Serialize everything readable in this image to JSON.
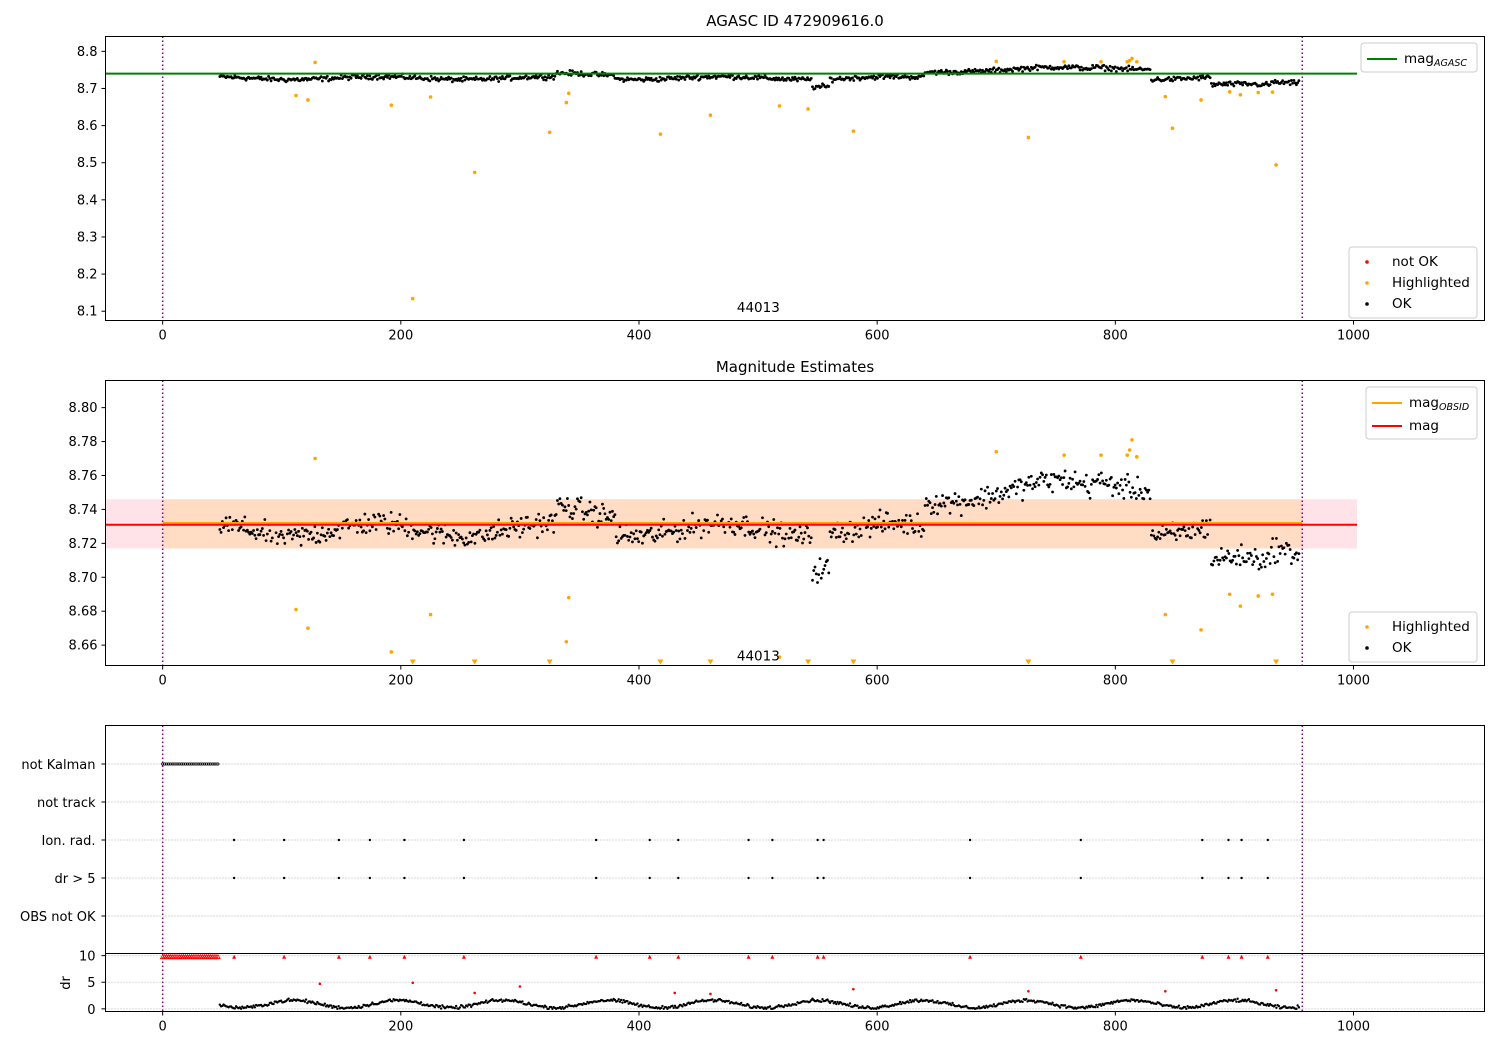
{
  "chart_data": [
    {
      "type": "scatter",
      "title": "AGASC ID 472909616.0",
      "xlabel": "",
      "ylabel": "",
      "xlim": [
        -48,
        1110
      ],
      "ylim": [
        8.075,
        8.84
      ],
      "xticks": [
        0,
        200,
        400,
        600,
        800,
        1000
      ],
      "yticks": [
        8.1,
        8.2,
        8.3,
        8.4,
        8.5,
        8.6,
        8.7,
        8.8
      ],
      "vlines": [
        0,
        957
      ],
      "annotation": {
        "text": "44013",
        "x": 478,
        "y": 8.1
      },
      "hline": {
        "name": "mag_{AGASC}",
        "y": 8.74,
        "x_range": [
          -48,
          1003
        ],
        "color": "#008000"
      },
      "legend_lines": [
        {
          "name": "mag",
          "sub": "AGASC",
          "color": "#008000"
        }
      ],
      "legend_points": [
        {
          "name": "not OK",
          "color": "#ff0000"
        },
        {
          "name": "Highlighted",
          "color": "#ffa500"
        },
        {
          "name": "OK",
          "color": "#000000"
        }
      ],
      "series": [
        {
          "name": "not OK",
          "color": "#ff0000",
          "values": []
        },
        {
          "name": "Highlighted",
          "color": "#ffa500",
          "points": [
            [
              112,
              8.681
            ],
            [
              122,
              8.669
            ],
            [
              128,
              8.77
            ],
            [
              192,
              8.655
            ],
            [
              210,
              8.134
            ],
            [
              225,
              8.677
            ],
            [
              262,
              8.474
            ],
            [
              325,
              8.582
            ],
            [
              339,
              8.662
            ],
            [
              341,
              8.687
            ],
            [
              418,
              8.577
            ],
            [
              460,
              8.628
            ],
            [
              518,
              8.653
            ],
            [
              542,
              8.645
            ],
            [
              580,
              8.585
            ],
            [
              700,
              8.773
            ],
            [
              727,
              8.568
            ],
            [
              757,
              8.772
            ],
            [
              788,
              8.772
            ],
            [
              810,
              8.772
            ],
            [
              812,
              8.775
            ],
            [
              814,
              8.781
            ],
            [
              818,
              8.772
            ],
            [
              842,
              8.678
            ],
            [
              848,
              8.593
            ],
            [
              872,
              8.669
            ],
            [
              896,
              8.691
            ],
            [
              905,
              8.683
            ],
            [
              920,
              8.689
            ],
            [
              932,
              8.69
            ],
            [
              935,
              8.494
            ]
          ]
        },
        {
          "name": "OK",
          "color": "#000000",
          "generated": {
            "x_range": [
              48,
              955
            ],
            "center": 8.731,
            "spread": 0.01
          }
        }
      ]
    },
    {
      "type": "scatter",
      "title": "Magnitude Estimates",
      "xlabel": "",
      "ylabel": "",
      "xlim": [
        -48,
        1110
      ],
      "ylim": [
        8.648,
        8.816
      ],
      "xticks": [
        0,
        200,
        400,
        600,
        800,
        1000
      ],
      "yticks": [
        8.66,
        8.68,
        8.7,
        8.72,
        8.74,
        8.76,
        8.78,
        8.8
      ],
      "vlines": [
        0,
        957
      ],
      "annotation": {
        "text": "44013",
        "x": 478,
        "y": 8.654
      },
      "band_outer": {
        "y": [
          8.717,
          8.746
        ],
        "x_range": [
          -48,
          1003
        ],
        "color": "#ffc0cb"
      },
      "band_inner": {
        "y": [
          8.717,
          8.746
        ],
        "x_range": [
          0,
          957
        ],
        "color": "#ffdab9"
      },
      "lines": [
        {
          "name": "mag_{OBSID}",
          "y": 8.732,
          "x_range": [
            0,
            957
          ],
          "color": "#ffa500"
        },
        {
          "name": "mag",
          "y": 8.731,
          "x_range": [
            -48,
            1003
          ],
          "color": "#ff0000"
        }
      ],
      "legend_lines": [
        {
          "name": "mag",
          "sub": "OBSID",
          "color": "#ffa500"
        },
        {
          "name": "mag",
          "sub": "",
          "color": "#ff0000"
        }
      ],
      "legend_points": [
        {
          "name": "Highlighted",
          "color": "#ffa500"
        },
        {
          "name": "OK",
          "color": "#000000"
        }
      ],
      "series": [
        {
          "name": "Highlighted",
          "color": "#ffa500",
          "points": [
            [
              112,
              8.681
            ],
            [
              122,
              8.67
            ],
            [
              128,
              8.77
            ],
            [
              192,
              8.656
            ],
            [
              225,
              8.678
            ],
            [
              339,
              8.662
            ],
            [
              341,
              8.688
            ],
            [
              518,
              8.653
            ],
            [
              700,
              8.774
            ],
            [
              757,
              8.772
            ],
            [
              788,
              8.772
            ],
            [
              810,
              8.772
            ],
            [
              812,
              8.775
            ],
            [
              814,
              8.781
            ],
            [
              818,
              8.771
            ],
            [
              842,
              8.678
            ],
            [
              872,
              8.669
            ],
            [
              896,
              8.69
            ],
            [
              905,
              8.683
            ],
            [
              920,
              8.689
            ],
            [
              932,
              8.69
            ]
          ]
        },
        {
          "name": "Highlighted (off-scale)",
          "color": "#ffa500",
          "marker": "triangle-down",
          "x": [
            210,
            262,
            325,
            418,
            460,
            542,
            580,
            727,
            848,
            935
          ]
        },
        {
          "name": "OK",
          "color": "#000000",
          "generated": {
            "x_range": [
              48,
              955
            ],
            "center": 8.731,
            "spread": 0.01
          }
        }
      ]
    },
    {
      "type": "scatter",
      "title": "",
      "xlabel": "",
      "ylabel": "",
      "xlim": [
        -48,
        1110
      ],
      "categories": [
        "not Kalman",
        "not track",
        "Ion. rad.",
        "dr > 5",
        "OBS not OK"
      ],
      "vlines": [
        0,
        957
      ],
      "flags": {
        "not Kalman": {
          "x_range": [
            0,
            47
          ]
        },
        "not track": {
          "x": []
        },
        "Ion. rad.": {
          "x": [
            60,
            102,
            148,
            174,
            203,
            253,
            364,
            409,
            433,
            492,
            512,
            550,
            555,
            678,
            771,
            873,
            895,
            906,
            928
          ]
        },
        "dr > 5": {
          "x": [
            60,
            102,
            148,
            174,
            203,
            253,
            364,
            409,
            433,
            492,
            512,
            550,
            555,
            678,
            771,
            873,
            895,
            906,
            928
          ]
        },
        "OBS not OK": {
          "x": []
        }
      }
    },
    {
      "type": "scatter",
      "title": "",
      "xlabel": "",
      "ylabel": "dr",
      "xlim": [
        -48,
        1110
      ],
      "ylim": [
        -0.5,
        10.4
      ],
      "xticks": [
        0,
        200,
        400,
        600,
        800,
        1000
      ],
      "yticks": [
        0,
        5,
        10
      ],
      "vlines": [
        0,
        957
      ],
      "series": [
        {
          "name": "clipped",
          "color": "#ff0000",
          "marker": "triangle-up",
          "y": 9.8,
          "x": [
            60,
            102,
            148,
            174,
            203,
            253,
            364,
            409,
            433,
            492,
            512,
            550,
            555,
            678,
            771,
            873,
            895,
            906,
            928
          ],
          "x_range": [
            0,
            47
          ]
        },
        {
          "name": "not OK",
          "color": "#ff0000",
          "points": [
            [
              132,
              4.7
            ],
            [
              210,
              4.9
            ],
            [
              262,
              3.0
            ],
            [
              300,
              4.2
            ],
            [
              430,
              3.0
            ],
            [
              460,
              2.8
            ],
            [
              580,
              3.7
            ],
            [
              727,
              3.3
            ],
            [
              842,
              3.3
            ],
            [
              935,
              3.5
            ]
          ]
        },
        {
          "name": "OK",
          "color": "#000000",
          "generated": {
            "x_range": [
              48,
              955
            ],
            "center": 1.0,
            "spread": 0.6
          }
        }
      ]
    }
  ],
  "colors": {
    "vline": "#800080",
    "grid": "#b0b0b0"
  }
}
